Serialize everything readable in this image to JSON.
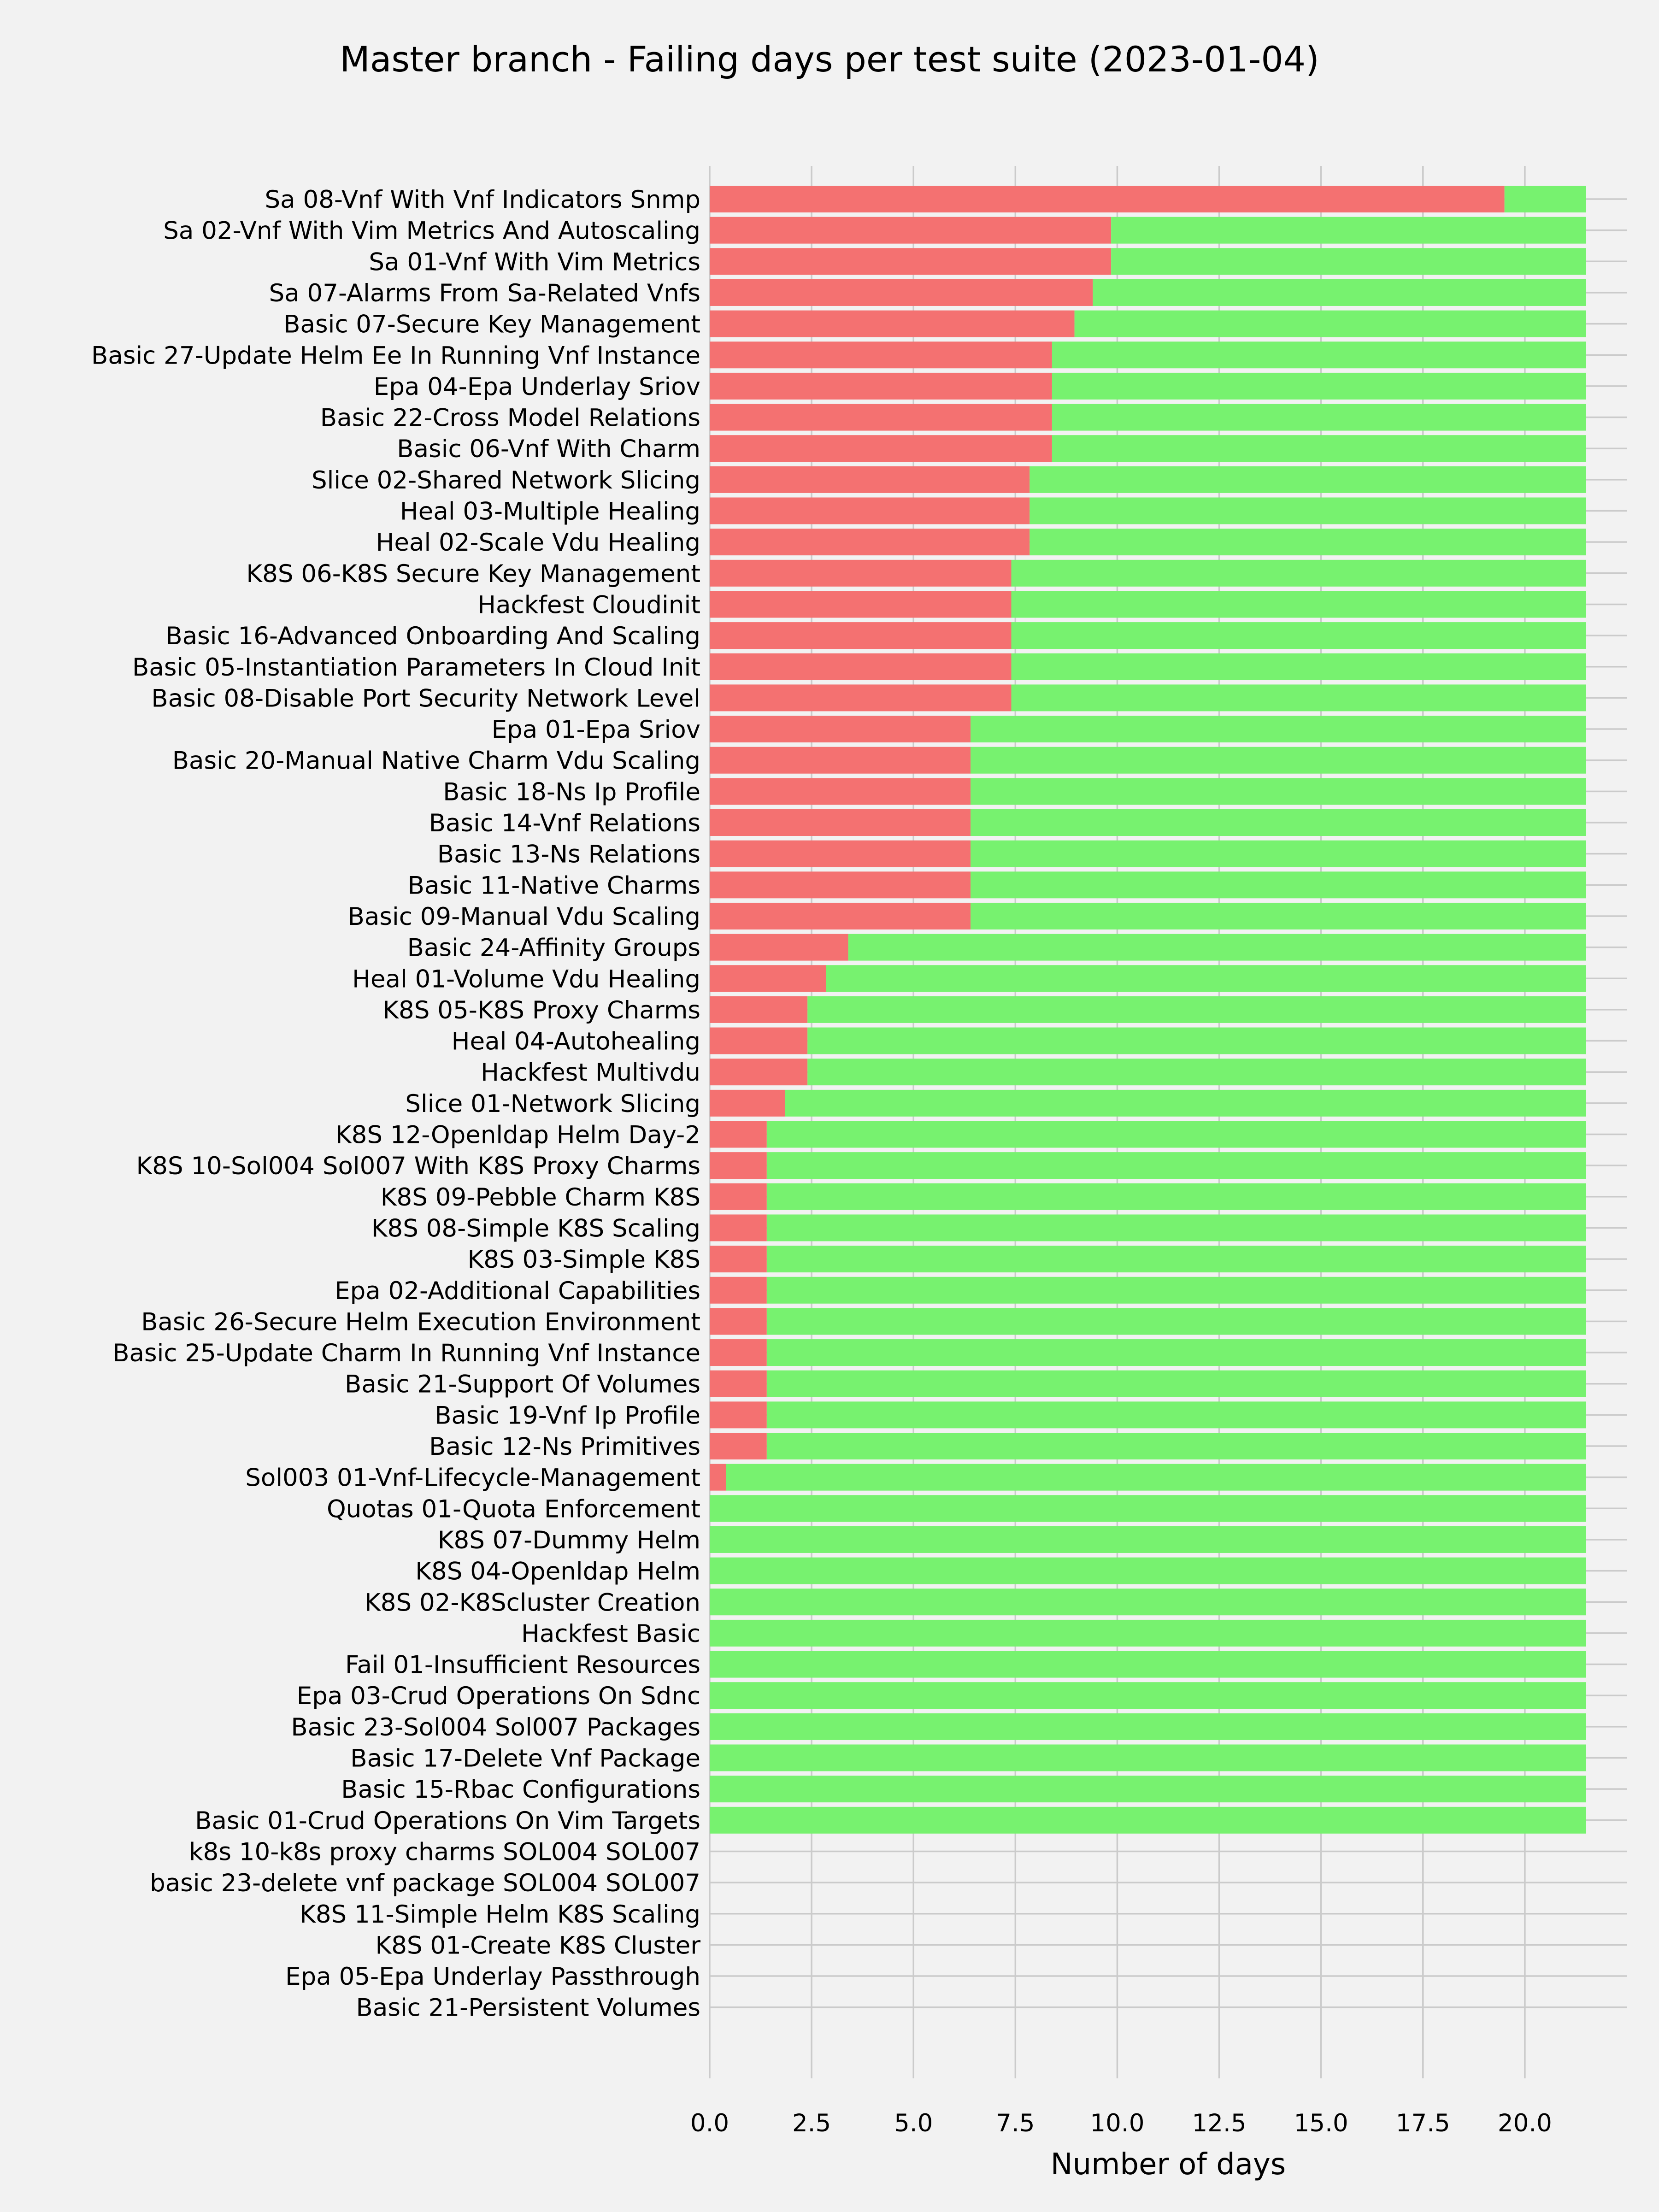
{
  "chart_data": {
    "type": "bar",
    "orientation": "horizontal",
    "stacked": true,
    "title": "Master branch - Failing days per test suite (2023-01-04)",
    "xlabel": "Number of days",
    "ylabel": "",
    "xlim": [
      0,
      22.5
    ],
    "xticks": [
      "0.0",
      "2.5",
      "5.0",
      "7.5",
      "10.0",
      "12.5",
      "15.0",
      "17.5",
      "20.0"
    ],
    "grid": true,
    "colors": {
      "failing": "#f47171",
      "passing": "#77f26f",
      "background": "#f2f2f2",
      "grid": "#cbcbcb"
    },
    "categories": [
      "Sa 08-Vnf With Vnf Indicators Snmp",
      "Sa 02-Vnf With Vim Metrics And Autoscaling",
      "Sa 01-Vnf With Vim Metrics",
      "Sa 07-Alarms From Sa-Related Vnfs",
      "Basic 07-Secure Key Management",
      "Basic 27-Update Helm Ee In Running Vnf Instance",
      "Epa 04-Epa Underlay Sriov",
      "Basic 22-Cross Model Relations",
      "Basic 06-Vnf With Charm",
      "Slice 02-Shared Network Slicing",
      "Heal 03-Multiple Healing",
      "Heal 02-Scale Vdu Healing",
      "K8S 06-K8S Secure Key Management",
      "Hackfest Cloudinit",
      "Basic 16-Advanced Onboarding And Scaling",
      "Basic 05-Instantiation Parameters In Cloud Init",
      "Basic 08-Disable Port Security Network Level",
      "Epa 01-Epa Sriov",
      "Basic 20-Manual Native Charm Vdu Scaling",
      "Basic 18-Ns Ip Profile",
      "Basic 14-Vnf Relations",
      "Basic 13-Ns Relations",
      "Basic 11-Native Charms",
      "Basic 09-Manual Vdu Scaling",
      "Basic 24-Affinity Groups",
      "Heal 01-Volume Vdu Healing",
      "K8S 05-K8S Proxy Charms",
      "Heal 04-Autohealing",
      "Hackfest Multivdu",
      "Slice 01-Network Slicing",
      "K8S 12-Openldap Helm Day-2",
      "K8S 10-Sol004 Sol007 With K8S Proxy Charms",
      "K8S 09-Pebble Charm K8S",
      "K8S 08-Simple K8S Scaling",
      "K8S 03-Simple K8S",
      "Epa 02-Additional Capabilities",
      "Basic 26-Secure Helm Execution Environment",
      "Basic 25-Update Charm In Running Vnf Instance",
      "Basic 21-Support Of Volumes",
      "Basic 19-Vnf Ip Profile",
      "Basic 12-Ns Primitives",
      "Sol003 01-Vnf-Lifecycle-Management",
      "Quotas 01-Quota Enforcement",
      "K8S 07-Dummy Helm",
      "K8S 04-Openldap Helm",
      "K8S 02-K8Scluster Creation",
      "Hackfest Basic",
      "Fail 01-Insufficient Resources",
      "Epa 03-Crud Operations On Sdnc",
      "Basic 23-Sol004 Sol007 Packages",
      "Basic 17-Delete Vnf Package",
      "Basic 15-Rbac Configurations",
      "Basic 01-Crud Operations On Vim Targets",
      "k8s 10-k8s proxy charms SOL004 SOL007",
      "basic 23-delete vnf package SOL004 SOL007",
      "K8S 11-Simple Helm K8S Scaling",
      "K8S 01-Create K8S Cluster",
      "Epa 05-Epa Underlay Passthrough",
      "Basic 21-Persistent Volumes"
    ],
    "series": [
      {
        "name": "",
        "color": "#f47171",
        "values": [
          19.5,
          9.85,
          9.85,
          9.4,
          8.95,
          8.4,
          8.4,
          8.4,
          8.4,
          7.85,
          7.85,
          7.85,
          7.4,
          7.4,
          7.4,
          7.4,
          7.4,
          6.4,
          6.4,
          6.4,
          6.4,
          6.4,
          6.4,
          6.4,
          3.4,
          2.85,
          2.4,
          2.4,
          2.4,
          1.85,
          1.4,
          1.4,
          1.4,
          1.4,
          1.4,
          1.4,
          1.4,
          1.4,
          1.4,
          1.4,
          1.4,
          0.4,
          0,
          0,
          0,
          0,
          0,
          0,
          0,
          0,
          0,
          0,
          0,
          0,
          0,
          0,
          0,
          0,
          0
        ]
      },
      {
        "name": "",
        "color": "#77f26f",
        "values": [
          2.0,
          11.65,
          11.65,
          12.1,
          12.55,
          13.1,
          13.1,
          13.1,
          13.1,
          13.65,
          13.65,
          13.65,
          14.1,
          14.1,
          14.1,
          14.1,
          14.1,
          15.1,
          15.1,
          15.1,
          15.1,
          15.1,
          15.1,
          15.1,
          18.1,
          18.65,
          19.1,
          19.1,
          19.1,
          19.65,
          20.1,
          20.1,
          20.1,
          20.1,
          20.1,
          20.1,
          20.1,
          20.1,
          20.1,
          20.1,
          20.1,
          21.1,
          21.5,
          21.5,
          21.5,
          21.5,
          21.5,
          21.5,
          21.5,
          21.5,
          21.5,
          21.5,
          21.5,
          0,
          0,
          0,
          0,
          0,
          0
        ]
      }
    ]
  }
}
